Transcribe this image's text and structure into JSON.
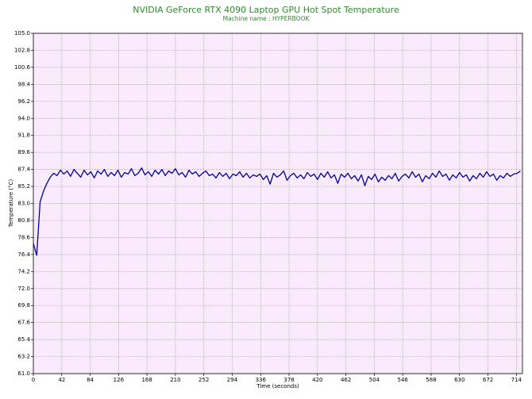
{
  "chart_data": {
    "type": "line",
    "title": "NVIDIA GeForce RTX 4090 Laptop GPU Hot Spot Temperature",
    "subtitle": "Machine name : HYPERBOOK",
    "x_label": "Time (seconds)",
    "y_label": "Temperature (°C)",
    "color": "#00009c",
    "grid": true,
    "xlim": [
      0,
      723
    ],
    "ylim": [
      61,
      105
    ],
    "xticks": [
      0,
      42,
      84,
      126,
      168,
      210,
      252,
      294,
      336,
      378,
      420,
      462,
      504,
      546,
      588,
      630,
      672,
      714
    ],
    "yticks": [
      {
        "value": 61,
        "label": "61.0"
      },
      63.2,
      65.4,
      67.6,
      69.8,
      {
        "value": 72,
        "label": "72.0"
      },
      74.2,
      76.4,
      78.6,
      80.8,
      {
        "value": 83,
        "label": "83.0"
      },
      85.2,
      87.4,
      89.6,
      91.8,
      {
        "value": 94,
        "label": "94.0"
      },
      96.2,
      98.4,
      100.6,
      102.8,
      {
        "value": 105,
        "label": "105.0"
      }
    ],
    "x": [
      0,
      5,
      10,
      15,
      20,
      25,
      30,
      35,
      40,
      45,
      50,
      55,
      60,
      65,
      70,
      75,
      80,
      85,
      90,
      95,
      100,
      105,
      110,
      115,
      120,
      125,
      130,
      135,
      140,
      145,
      150,
      155,
      160,
      165,
      170,
      175,
      180,
      185,
      190,
      195,
      200,
      205,
      210,
      215,
      220,
      225,
      230,
      235,
      240,
      245,
      250,
      255,
      260,
      265,
      270,
      275,
      280,
      285,
      290,
      295,
      300,
      305,
      310,
      315,
      320,
      325,
      330,
      335,
      340,
      345,
      350,
      355,
      360,
      365,
      370,
      375,
      380,
      385,
      390,
      395,
      400,
      405,
      410,
      415,
      420,
      425,
      430,
      435,
      440,
      445,
      450,
      455,
      460,
      465,
      470,
      475,
      480,
      485,
      490,
      495,
      500,
      505,
      510,
      515,
      520,
      525,
      530,
      535,
      540,
      545,
      550,
      555,
      560,
      565,
      570,
      575,
      580,
      585,
      590,
      595,
      600,
      605,
      610,
      615,
      620,
      625,
      630,
      635,
      640,
      645,
      650,
      655,
      660,
      665,
      670,
      675,
      680,
      685,
      690,
      695,
      700,
      705,
      710,
      715,
      720
    ],
    "values": [
      77.8,
      76.3,
      83.2,
      84.6,
      85.6,
      86.4,
      86.9,
      86.6,
      87.3,
      86.8,
      87.2,
      86.5,
      87.4,
      86.9,
      86.4,
      87.3,
      86.7,
      87.1,
      86.3,
      87.2,
      86.8,
      87.4,
      86.5,
      87.0,
      86.6,
      87.3,
      86.4,
      87.0,
      86.8,
      87.5,
      86.6,
      86.9,
      87.6,
      86.7,
      87.1,
      86.5,
      87.3,
      86.8,
      87.4,
      86.6,
      87.2,
      86.9,
      87.5,
      86.7,
      87.0,
      86.4,
      87.3,
      86.8,
      87.1,
      86.5,
      86.9,
      87.2,
      86.6,
      86.8,
      86.3,
      87.0,
      86.5,
      86.9,
      86.2,
      86.8,
      86.6,
      87.1,
      86.4,
      86.9,
      86.3,
      86.7,
      86.5,
      86.8,
      86.1,
      86.6,
      85.5,
      86.9,
      86.4,
      86.7,
      87.2,
      86.0,
      86.6,
      86.9,
      86.3,
      86.7,
      86.2,
      87.0,
      86.5,
      86.8,
      86.1,
      86.9,
      86.4,
      87.1,
      86.3,
      86.7,
      85.6,
      86.8,
      86.4,
      86.9,
      86.2,
      86.6,
      85.9,
      86.7,
      85.3,
      86.5,
      86.1,
      86.8,
      85.8,
      86.4,
      86.0,
      86.6,
      86.2,
      86.9,
      85.9,
      86.5,
      86.8,
      86.3,
      87.1,
      86.4,
      86.8,
      85.8,
      86.6,
      86.2,
      86.9,
      86.4,
      87.2,
      86.5,
      86.8,
      86.0,
      86.7,
      86.3,
      87.0,
      86.4,
      86.7,
      85.9,
      86.6,
      86.2,
      86.9,
      86.4,
      87.1,
      86.5,
      86.8,
      86.0,
      86.6,
      86.3,
      86.9,
      86.5,
      86.8,
      86.9,
      87.2
    ]
  }
}
